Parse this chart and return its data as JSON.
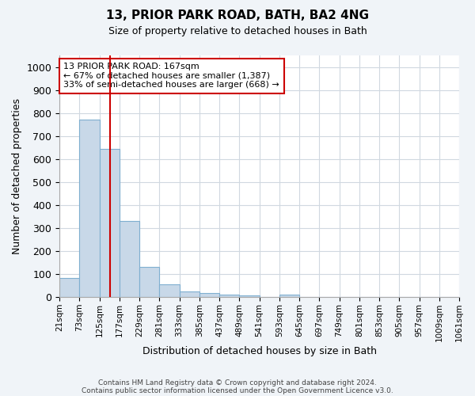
{
  "title1": "13, PRIOR PARK ROAD, BATH, BA2 4NG",
  "title2": "Size of property relative to detached houses in Bath",
  "xlabel": "Distribution of detached houses by size in Bath",
  "ylabel": "Number of detached properties",
  "bar_values": [
    83,
    770,
    645,
    330,
    133,
    57,
    25,
    18,
    10,
    7,
    0,
    10,
    0,
    0,
    0,
    0,
    0,
    0,
    0,
    0
  ],
  "tick_labels": [
    "21sqm",
    "73sqm",
    "125sqm",
    "177sqm",
    "229sqm",
    "281sqm",
    "333sqm",
    "385sqm",
    "437sqm",
    "489sqm",
    "541sqm",
    "593sqm",
    "645sqm",
    "697sqm",
    "749sqm",
    "801sqm",
    "853sqm",
    "905sqm",
    "957sqm",
    "1009sqm",
    "1061sqm"
  ],
  "bar_color": "#c8d8e8",
  "bar_edge_color": "#7fafd0",
  "vline_position": 2.54,
  "vline_color": "#cc0000",
  "annotation_text": "13 PRIOR PARK ROAD: 167sqm\n← 67% of detached houses are smaller (1,387)\n33% of semi-detached houses are larger (668) →",
  "annotation_box_color": "white",
  "annotation_box_edge": "#cc0000",
  "ylim": [
    0,
    1050
  ],
  "yticks": [
    0,
    100,
    200,
    300,
    400,
    500,
    600,
    700,
    800,
    900,
    1000
  ],
  "footnote1": "Contains HM Land Registry data © Crown copyright and database right 2024.",
  "footnote2": "Contains public sector information licensed under the Open Government Licence v3.0.",
  "bg_color": "#f0f4f8",
  "plot_bg_color": "#ffffff",
  "grid_color": "#d0d8e0"
}
